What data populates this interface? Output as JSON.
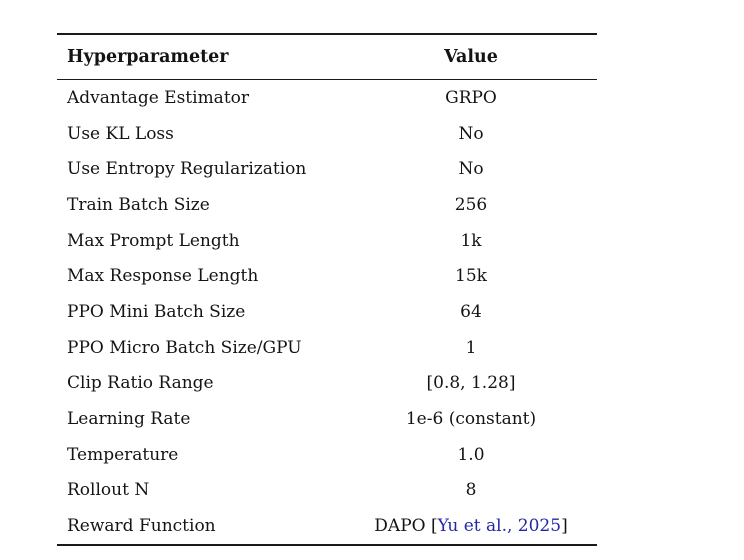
{
  "table": {
    "link_color": "#2525a8",
    "columns": [
      "Hyperparameter",
      "Value"
    ],
    "rows": [
      {
        "param": "Advantage Estimator",
        "value": [
          {
            "t": "GRPO"
          }
        ]
      },
      {
        "param": "Use KL Loss",
        "value": [
          {
            "t": "No"
          }
        ]
      },
      {
        "param": "Use Entropy Regularization",
        "value": [
          {
            "t": "No"
          }
        ]
      },
      {
        "param": "Train Batch Size",
        "value": [
          {
            "t": "256"
          }
        ]
      },
      {
        "param": "Max Prompt Length",
        "value": [
          {
            "t": "1k"
          }
        ]
      },
      {
        "param": "Max Response Length",
        "value": [
          {
            "t": "15k"
          }
        ]
      },
      {
        "param": "PPO Mini Batch Size",
        "value": [
          {
            "t": "64"
          }
        ]
      },
      {
        "param": "PPO Micro Batch Size/GPU",
        "value": [
          {
            "t": "1"
          }
        ]
      },
      {
        "param": "Clip Ratio Range",
        "value": [
          {
            "t": "[0.8, 1.28]"
          }
        ]
      },
      {
        "param": "Learning Rate",
        "value": [
          {
            "t": "1e-6 (constant)"
          }
        ]
      },
      {
        "param": "Temperature",
        "value": [
          {
            "t": "1.0"
          }
        ]
      },
      {
        "param": "Rollout N",
        "value": [
          {
            "t": "8"
          }
        ]
      },
      {
        "param": "Reward Function",
        "value": [
          {
            "t": "DAPO ["
          },
          {
            "t": "Yu et al., 2025",
            "link": true
          },
          {
            "t": "]"
          }
        ]
      }
    ]
  }
}
